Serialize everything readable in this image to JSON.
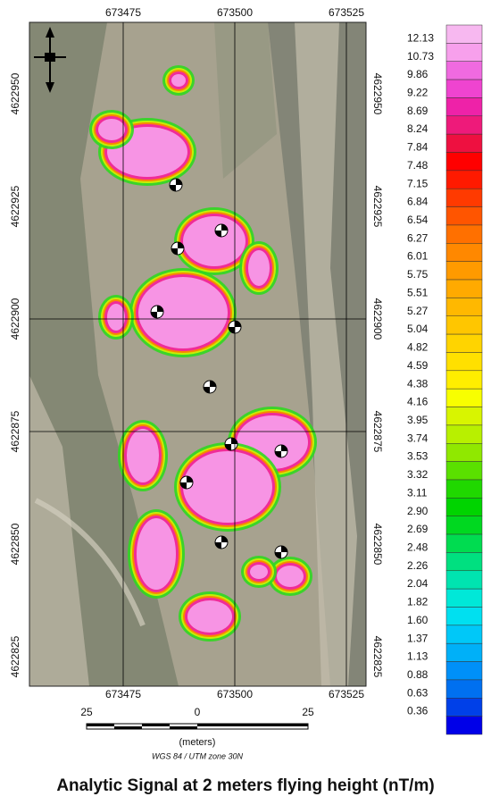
{
  "map": {
    "easting_labels": [
      "673475",
      "673500",
      "673525"
    ],
    "northing_labels": [
      "4622950",
      "4622925",
      "4622900",
      "4622875",
      "4622850",
      "4622825"
    ],
    "scale_bar": {
      "labels": [
        "25",
        "0",
        "25"
      ],
      "unit": "(meters)"
    },
    "datum": "WGS 84 / UTM zone 30N",
    "legend": {
      "labels": [
        "12.13",
        "10.73",
        "9.86",
        "9.22",
        "8.69",
        "8.24",
        "7.84",
        "7.48",
        "7.15",
        "6.84",
        "6.54",
        "6.27",
        "6.01",
        "5.75",
        "5.51",
        "5.27",
        "5.04",
        "4.82",
        "4.59",
        "4.38",
        "4.16",
        "3.95",
        "3.74",
        "3.53",
        "3.32",
        "3.11",
        "2.90",
        "2.69",
        "2.48",
        "2.26",
        "2.04",
        "1.82",
        "1.60",
        "1.37",
        "1.13",
        "0.88",
        "0.63",
        "0.36"
      ],
      "colors": [
        "#f7b8f0",
        "#f7a0ec",
        "#f06ae0",
        "#ef44d0",
        "#ee22a8",
        "#ee1a7a",
        "#ee1040",
        "#ff0000",
        "#ff1a00",
        "#ff3a00",
        "#ff5500",
        "#ff7000",
        "#ff8800",
        "#ff9a00",
        "#ffaa00",
        "#ffb800",
        "#ffc600",
        "#ffd400",
        "#ffe000",
        "#ffee00",
        "#f8ff00",
        "#d8f500",
        "#b8f000",
        "#90e800",
        "#5ae000",
        "#20d800",
        "#00d400",
        "#00d820",
        "#00dc50",
        "#00e080",
        "#00e4b0",
        "#00e8d8",
        "#00e0f0",
        "#00c8f8",
        "#00b0f8",
        "#0090f8",
        "#0070f0",
        "#0040e8",
        "#0000e8"
      ]
    }
  },
  "title": "Analytic Signal at 2 meters flying height (nT/m)"
}
